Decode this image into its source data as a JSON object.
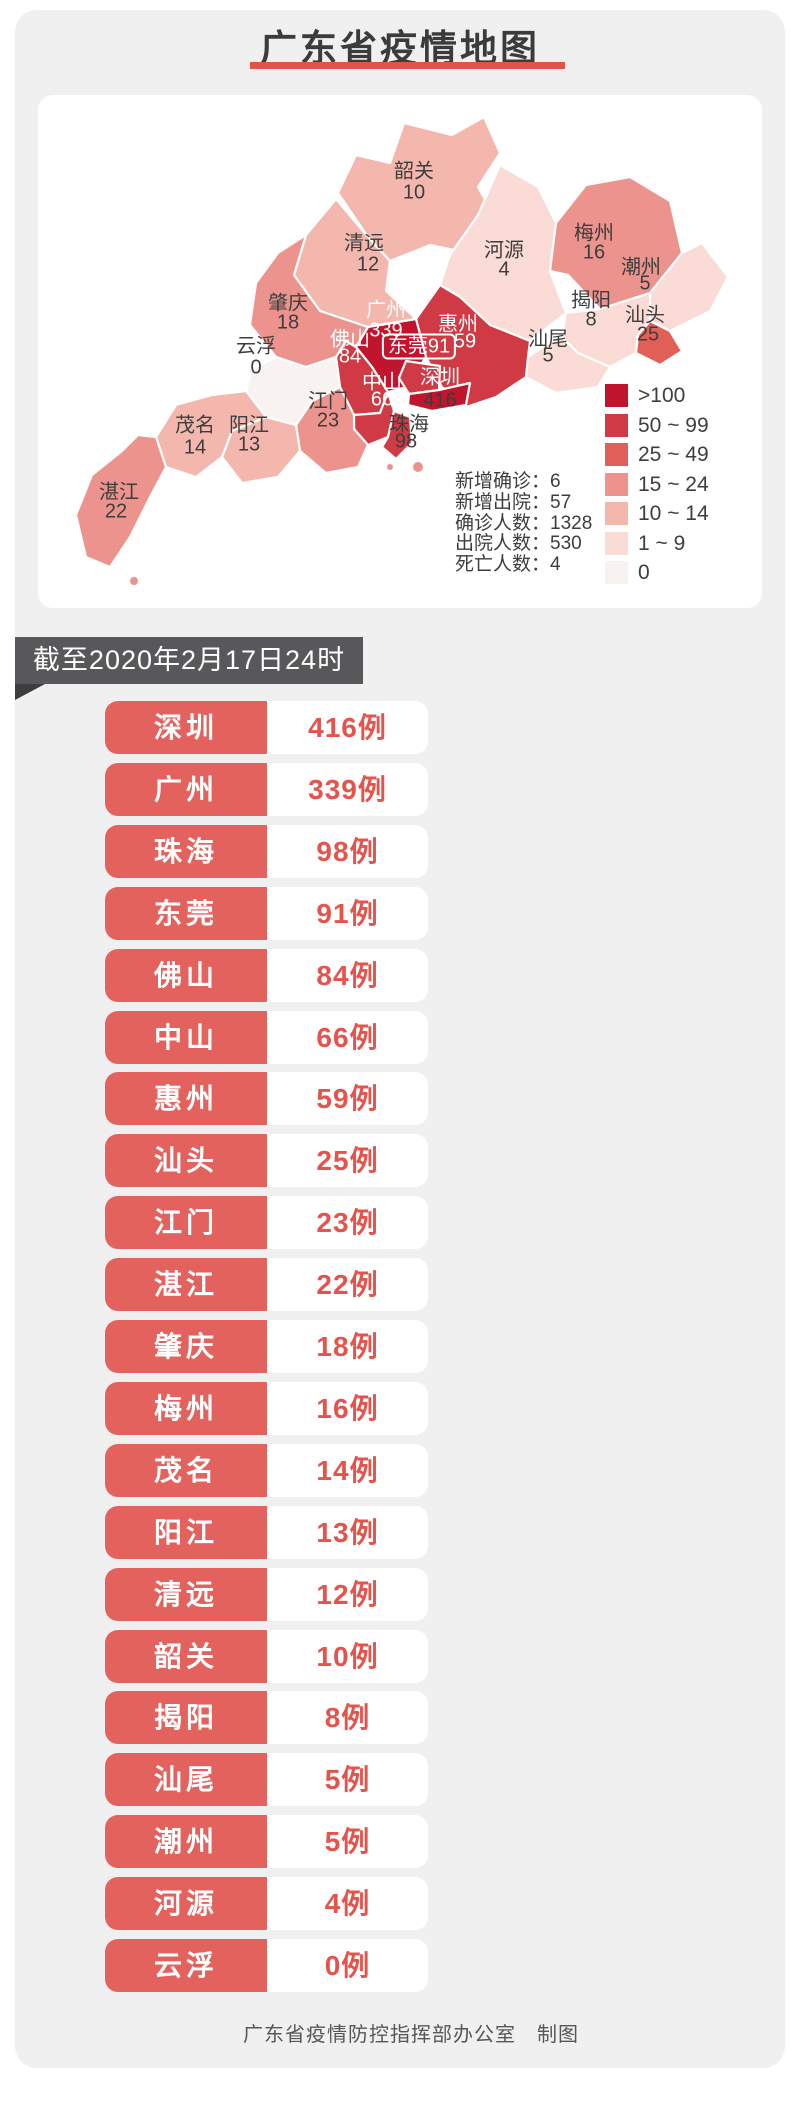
{
  "title": {
    "text": "广东省疫情地图"
  },
  "date_banner": {
    "text": "截至2020年2月17日24时"
  },
  "footer": {
    "text": "广东省疫情防控指挥部办公室　制图"
  },
  "colors": {
    "accent_red": "#e0524c",
    "pill_red": "#e4625e",
    "value_red": "#e4544c",
    "banner_gray": "#58585a",
    "card_gray": "#f0f0f1"
  },
  "legend": {
    "items": [
      {
        "label": ">100",
        "color": "#c0152d"
      },
      {
        "label": "50 ~ 99",
        "color": "#cf3a44"
      },
      {
        "label": "25 ~ 49",
        "color": "#e06058"
      },
      {
        "label": "15 ~ 24",
        "color": "#ec938d"
      },
      {
        "label": "10 ~ 14",
        "color": "#f4b7ae"
      },
      {
        "label": "1 ~ 9",
        "color": "#fadbd5"
      },
      {
        "label": "0",
        "color": "#f8f3f1"
      }
    ]
  },
  "stats": {
    "lines": [
      "新增确诊：6",
      "新增出院：57",
      "确诊人数：1328",
      "出院人数：530",
      "死亡人数：4"
    ]
  },
  "map_data": {
    "type": "choropleth",
    "province": "广东省",
    "regions": [
      {
        "id": "shaoguan",
        "name": "韶关",
        "value": 10,
        "level": 4
      },
      {
        "id": "qingyuan",
        "name": "清远",
        "value": 12,
        "level": 4
      },
      {
        "id": "heyuan",
        "name": "河源",
        "value": 4,
        "level": 5
      },
      {
        "id": "meizhou",
        "name": "梅州",
        "value": 16,
        "level": 3
      },
      {
        "id": "chaozhou",
        "name": "潮州",
        "value": 5,
        "level": 5
      },
      {
        "id": "jieyang",
        "name": "揭阳",
        "value": 8,
        "level": 5
      },
      {
        "id": "shantou",
        "name": "汕头",
        "value": 25,
        "level": 2
      },
      {
        "id": "shanwei",
        "name": "汕尾",
        "value": 5,
        "level": 5
      },
      {
        "id": "huizhou",
        "name": "惠州",
        "value": 59,
        "level": 1
      },
      {
        "id": "guangzhou",
        "name": "广州",
        "value": 339,
        "level": 0
      },
      {
        "id": "dongguan",
        "name": "东莞",
        "value": 91,
        "level": 1
      },
      {
        "id": "shenzhen",
        "name": "深圳",
        "value": 416,
        "level": 0
      },
      {
        "id": "foshan",
        "name": "佛山",
        "value": 84,
        "level": 1
      },
      {
        "id": "zhongshan",
        "name": "中山",
        "value": 66,
        "level": 1
      },
      {
        "id": "zhuhai",
        "name": "珠海",
        "value": 98,
        "level": 1
      },
      {
        "id": "jiangmen",
        "name": "江门",
        "value": 23,
        "level": 3
      },
      {
        "id": "zhaoqing",
        "name": "肇庆",
        "value": 18,
        "level": 3
      },
      {
        "id": "yunfu",
        "name": "云浮",
        "value": 0,
        "level": 6
      },
      {
        "id": "yangjiang",
        "name": "阳江",
        "value": 13,
        "level": 4
      },
      {
        "id": "maoming",
        "name": "茂名",
        "value": 14,
        "level": 4
      },
      {
        "id": "zhanjiang",
        "name": "湛江",
        "value": 22,
        "level": 3
      }
    ]
  },
  "table": {
    "rows": [
      {
        "city": "深圳",
        "cases": "416例"
      },
      {
        "city": "广州",
        "cases": "339例"
      },
      {
        "city": "珠海",
        "cases": "98例"
      },
      {
        "city": "东莞",
        "cases": "91例"
      },
      {
        "city": "佛山",
        "cases": "84例"
      },
      {
        "city": "中山",
        "cases": "66例"
      },
      {
        "city": "惠州",
        "cases": "59例"
      },
      {
        "city": "汕头",
        "cases": "25例"
      },
      {
        "city": "江门",
        "cases": "23例"
      },
      {
        "city": "湛江",
        "cases": "22例"
      },
      {
        "city": "肇庆",
        "cases": "18例"
      },
      {
        "city": "梅州",
        "cases": "16例"
      },
      {
        "city": "茂名",
        "cases": "14例"
      },
      {
        "city": "阳江",
        "cases": "13例"
      },
      {
        "city": "清远",
        "cases": "12例"
      },
      {
        "city": "韶关",
        "cases": "10例"
      },
      {
        "city": "揭阳",
        "cases": "8例"
      },
      {
        "city": "汕尾",
        "cases": "5例"
      },
      {
        "city": "潮州",
        "cases": "5例"
      },
      {
        "city": "河源",
        "cases": "4例"
      },
      {
        "city": "云浮",
        "cases": "0例"
      }
    ]
  }
}
